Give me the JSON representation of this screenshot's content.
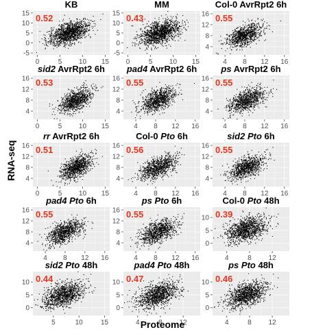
{
  "figure": {
    "xlabel": "Proteome",
    "ylabel": "RNA-seq"
  },
  "chart_data": [
    {
      "type": "scatter",
      "title": "KB",
      "title_parts": [
        {
          "t": "KB",
          "i": false
        }
      ],
      "r": "0.52",
      "xticks": [
        0,
        5,
        10,
        15
      ],
      "yticks": [
        -5,
        0,
        5,
        10,
        15
      ],
      "xlim": [
        -1,
        16
      ],
      "ylim": [
        -6,
        16
      ],
      "cloud": {
        "cx": 7,
        "cy": 5,
        "sx": 2.2,
        "sy": 3,
        "rho": 0.52,
        "n": 1300
      }
    },
    {
      "type": "scatter",
      "title": "MM",
      "title_parts": [
        {
          "t": "MM",
          "i": false
        }
      ],
      "r": "0.43",
      "xticks": [
        0,
        5,
        10,
        15
      ],
      "yticks": [
        -5,
        0,
        5,
        10,
        15
      ],
      "xlim": [
        -1,
        16
      ],
      "ylim": [
        -6,
        16
      ],
      "cloud": {
        "cx": 7,
        "cy": 5,
        "sx": 2.2,
        "sy": 3,
        "rho": 0.43,
        "n": 1300
      }
    },
    {
      "type": "scatter",
      "title": "Col-0 AvrRpt2 6h",
      "title_parts": [
        {
          "t": "Col-0 AvrRpt2 6h",
          "i": false
        }
      ],
      "r": "0.55",
      "xticks": [
        4,
        8,
        12,
        16
      ],
      "yticks": [
        4,
        8,
        12,
        16
      ],
      "xlim": [
        1.5,
        17
      ],
      "ylim": [
        1,
        17
      ],
      "cloud": {
        "cx": 8,
        "cy": 8,
        "sx": 1.8,
        "sy": 2.2,
        "rho": 0.55,
        "n": 900
      }
    },
    {
      "type": "scatter",
      "title": "sid2 AvrRpt2 6h",
      "title_parts": [
        {
          "t": "sid2",
          "i": true
        },
        {
          "t": " AvrRpt2 6h",
          "i": false
        }
      ],
      "r": "0.53",
      "xticks": [
        0,
        5,
        10,
        15
      ],
      "yticks": [
        4,
        8,
        12,
        16
      ],
      "xlim": [
        -1,
        16
      ],
      "ylim": [
        1,
        17
      ],
      "cloud": {
        "cx": 8.5,
        "cy": 8,
        "sx": 1.8,
        "sy": 2.2,
        "rho": 0.53,
        "n": 900
      }
    },
    {
      "type": "scatter",
      "title": "pad4 AvrRpt2 6h",
      "title_parts": [
        {
          "t": "pad4",
          "i": true
        },
        {
          "t": " AvrRpt2 6h",
          "i": false
        }
      ],
      "r": "0.55",
      "xticks": [
        4,
        8,
        12,
        16
      ],
      "yticks": [
        4,
        8,
        12,
        16
      ],
      "xlim": [
        1.5,
        17
      ],
      "ylim": [
        1,
        17
      ],
      "cloud": {
        "cx": 8.5,
        "cy": 8,
        "sx": 1.8,
        "sy": 2.2,
        "rho": 0.55,
        "n": 900
      }
    },
    {
      "type": "scatter",
      "title": "ps AvrRpt2 6h",
      "title_parts": [
        {
          "t": "ps",
          "i": true
        },
        {
          "t": " AvrRpt2 6h",
          "i": false
        }
      ],
      "r": "0.55",
      "xticks": [
        4,
        8,
        12,
        16
      ],
      "yticks": [
        4,
        8,
        12,
        16
      ],
      "xlim": [
        1.5,
        17
      ],
      "ylim": [
        1,
        17
      ],
      "cloud": {
        "cx": 8.5,
        "cy": 8,
        "sx": 1.8,
        "sy": 2.2,
        "rho": 0.55,
        "n": 900
      }
    },
    {
      "type": "scatter",
      "title": "rr AvrRpt2 6h",
      "title_parts": [
        {
          "t": "rr",
          "i": true
        },
        {
          "t": " AvrRpt2 6h",
          "i": false
        }
      ],
      "r": "0.51",
      "xticks": [
        0,
        5,
        10,
        15
      ],
      "yticks": [
        4,
        8,
        12,
        16
      ],
      "xlim": [
        -1,
        16
      ],
      "ylim": [
        1,
        17
      ],
      "cloud": {
        "cx": 8.5,
        "cy": 8,
        "sx": 1.8,
        "sy": 2.2,
        "rho": 0.51,
        "n": 900
      }
    },
    {
      "type": "scatter",
      "title": "Col-0 Pto 6h",
      "title_parts": [
        {
          "t": "Col-0 ",
          "i": false
        },
        {
          "t": "Pto",
          "i": true
        },
        {
          "t": " 6h",
          "i": false
        }
      ],
      "r": "0.56",
      "xticks": [
        4,
        8,
        12,
        16
      ],
      "yticks": [
        4,
        8,
        12,
        16
      ],
      "xlim": [
        1.5,
        17
      ],
      "ylim": [
        1,
        17
      ],
      "cloud": {
        "cx": 8.5,
        "cy": 8,
        "sx": 1.8,
        "sy": 2.2,
        "rho": 0.56,
        "n": 900
      }
    },
    {
      "type": "scatter",
      "title": "sid2 Pto 6h",
      "title_parts": [
        {
          "t": "sid2",
          "i": true
        },
        {
          "t": " ",
          "i": false
        },
        {
          "t": "Pto",
          "i": true
        },
        {
          "t": " 6h",
          "i": false
        }
      ],
      "r": "0.55",
      "xticks": [
        4,
        8,
        12,
        16
      ],
      "yticks": [
        4,
        8,
        12,
        16
      ],
      "xlim": [
        1.5,
        17
      ],
      "ylim": [
        1,
        17
      ],
      "cloud": {
        "cx": 8.5,
        "cy": 8,
        "sx": 1.8,
        "sy": 2.2,
        "rho": 0.55,
        "n": 900
      }
    },
    {
      "type": "scatter",
      "title": "pad4 Pto 6h",
      "title_parts": [
        {
          "t": "pad4",
          "i": true
        },
        {
          "t": " ",
          "i": false
        },
        {
          "t": "Pto",
          "i": true
        },
        {
          "t": " 6h",
          "i": false
        }
      ],
      "r": "0.55",
      "xticks": [
        4,
        8,
        12,
        16
      ],
      "yticks": [
        4,
        8,
        12,
        16
      ],
      "xlim": [
        1.5,
        17
      ],
      "ylim": [
        1,
        17
      ],
      "cloud": {
        "cx": 8,
        "cy": 8,
        "sx": 1.8,
        "sy": 2.2,
        "rho": 0.55,
        "n": 900
      }
    },
    {
      "type": "scatter",
      "title": "ps Pto 6h",
      "title_parts": [
        {
          "t": "ps",
          "i": true
        },
        {
          "t": " ",
          "i": false
        },
        {
          "t": "Pto",
          "i": true
        },
        {
          "t": " 6h",
          "i": false
        }
      ],
      "r": "0.55",
      "xticks": [
        4,
        8,
        12,
        16
      ],
      "yticks": [
        4,
        8,
        12,
        16
      ],
      "xlim": [
        1.5,
        17
      ],
      "ylim": [
        1,
        17
      ],
      "cloud": {
        "cx": 8.5,
        "cy": 8,
        "sx": 1.8,
        "sy": 2.2,
        "rho": 0.55,
        "n": 900
      }
    },
    {
      "type": "scatter",
      "title": "Col-0 Pto 48h",
      "title_parts": [
        {
          "t": "Col-0 ",
          "i": false
        },
        {
          "t": "Pto",
          "i": true
        },
        {
          "t": " 48h",
          "i": false
        }
      ],
      "r": "0.39",
      "xticks": [
        4,
        8,
        12
      ],
      "yticks": [
        0,
        5,
        10
      ],
      "xlim": [
        1.5,
        15
      ],
      "ylim": [
        -3,
        14
      ],
      "cloud": {
        "cx": 7.5,
        "cy": 5.5,
        "sx": 1.8,
        "sy": 2.5,
        "rho": 0.39,
        "n": 1100
      }
    },
    {
      "type": "scatter",
      "title": "sid2 Pto 48h",
      "title_parts": [
        {
          "t": "sid2",
          "i": true
        },
        {
          "t": " ",
          "i": false
        },
        {
          "t": "Pto",
          "i": true
        },
        {
          "t": " 48h",
          "i": false
        }
      ],
      "r": "0.44",
      "xticks": [
        5,
        10,
        15
      ],
      "yticks": [
        0,
        5,
        10
      ],
      "xlim": [
        1,
        16
      ],
      "ylim": [
        -3,
        14
      ],
      "cloud": {
        "cx": 7,
        "cy": 5,
        "sx": 2,
        "sy": 2.5,
        "rho": 0.44,
        "n": 1100
      }
    },
    {
      "type": "scatter",
      "title": "pad4 Pto 48h",
      "title_parts": [
        {
          "t": "pad4",
          "i": true
        },
        {
          "t": " ",
          "i": false
        },
        {
          "t": "Pto",
          "i": true
        },
        {
          "t": " 48h",
          "i": false
        }
      ],
      "r": "0.47",
      "xticks": [
        4,
        8,
        12
      ],
      "yticks": [
        0,
        5,
        10
      ],
      "xlim": [
        1.5,
        15
      ],
      "ylim": [
        -3,
        14
      ],
      "cloud": {
        "cx": 7.5,
        "cy": 5,
        "sx": 1.8,
        "sy": 2.5,
        "rho": 0.47,
        "n": 1100
      }
    },
    {
      "type": "scatter",
      "title": "ps Pto 48h",
      "title_parts": [
        {
          "t": "ps",
          "i": true
        },
        {
          "t": " ",
          "i": false
        },
        {
          "t": "Pto",
          "i": true
        },
        {
          "t": " 48h",
          "i": false
        }
      ],
      "r": "0.46",
      "xticks": [
        4,
        8,
        12
      ],
      "yticks": [
        0,
        5,
        10
      ],
      "xlim": [
        1.5,
        15
      ],
      "ylim": [
        -3,
        14
      ],
      "cloud": {
        "cx": 7.5,
        "cy": 5,
        "sx": 1.8,
        "sy": 2.5,
        "rho": 0.46,
        "n": 1100
      }
    }
  ],
  "colors": {
    "panel_bg": "#ebebeb",
    "grid": "#ffffff",
    "point": "#000000",
    "r_value": "#e8341c",
    "tick_text": "#4d4d4d"
  }
}
